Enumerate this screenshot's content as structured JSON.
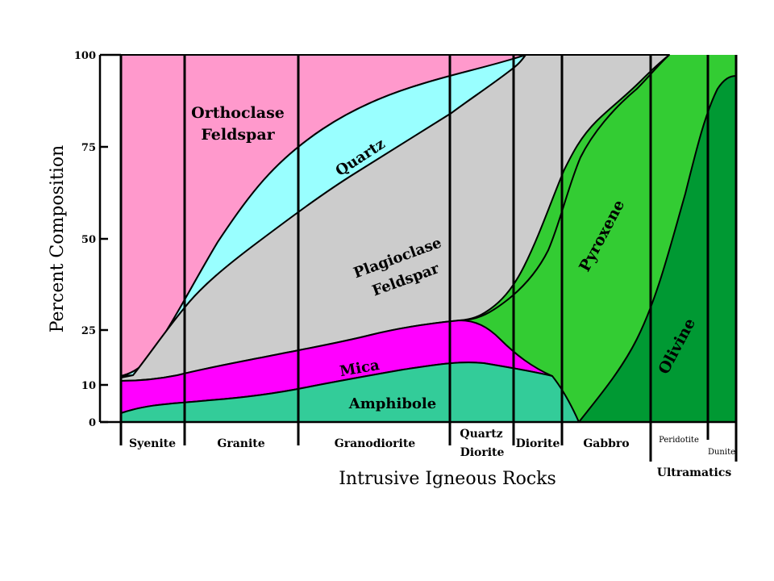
{
  "axis": {
    "y_title": "Percent Composition",
    "y_ticks": [
      "100",
      "75",
      "50",
      "25",
      "10",
      "0"
    ],
    "x_title": "Intrusive Igneous Rocks"
  },
  "minerals": {
    "orthoclase_line1": "Orthoclase",
    "orthoclase_line2": "Feldspar",
    "quartz": "Quartz",
    "plagioclase_line1": "Plagioclase",
    "plagioclase_line2": "Feldspar",
    "mica": "Mica",
    "amphibole": "Amphibole",
    "pyroxene": "Pyroxene",
    "olivine": "Olivine"
  },
  "rocks": {
    "syenite": "Syenite",
    "granite": "Granite",
    "granodiorite": "Granodiorite",
    "quartz_diorite_line1": "Quartz",
    "quartz_diorite_line2": "Diorite",
    "diorite": "Diorite",
    "gabbro": "Gabbro",
    "peridotite": "Peridotite",
    "dunite": "Dunite",
    "ultramafics": "Ultramatics"
  },
  "colors": {
    "orthoclase": "#ff99cc",
    "quartz": "#99ffff",
    "plagioclase": "#cccccc",
    "mica": "#ff00ff",
    "amphibole": "#33cc99",
    "pyroxene": "#33cc33",
    "olivine": "#009933",
    "ultramafic_bg": "#33cc33"
  }
}
